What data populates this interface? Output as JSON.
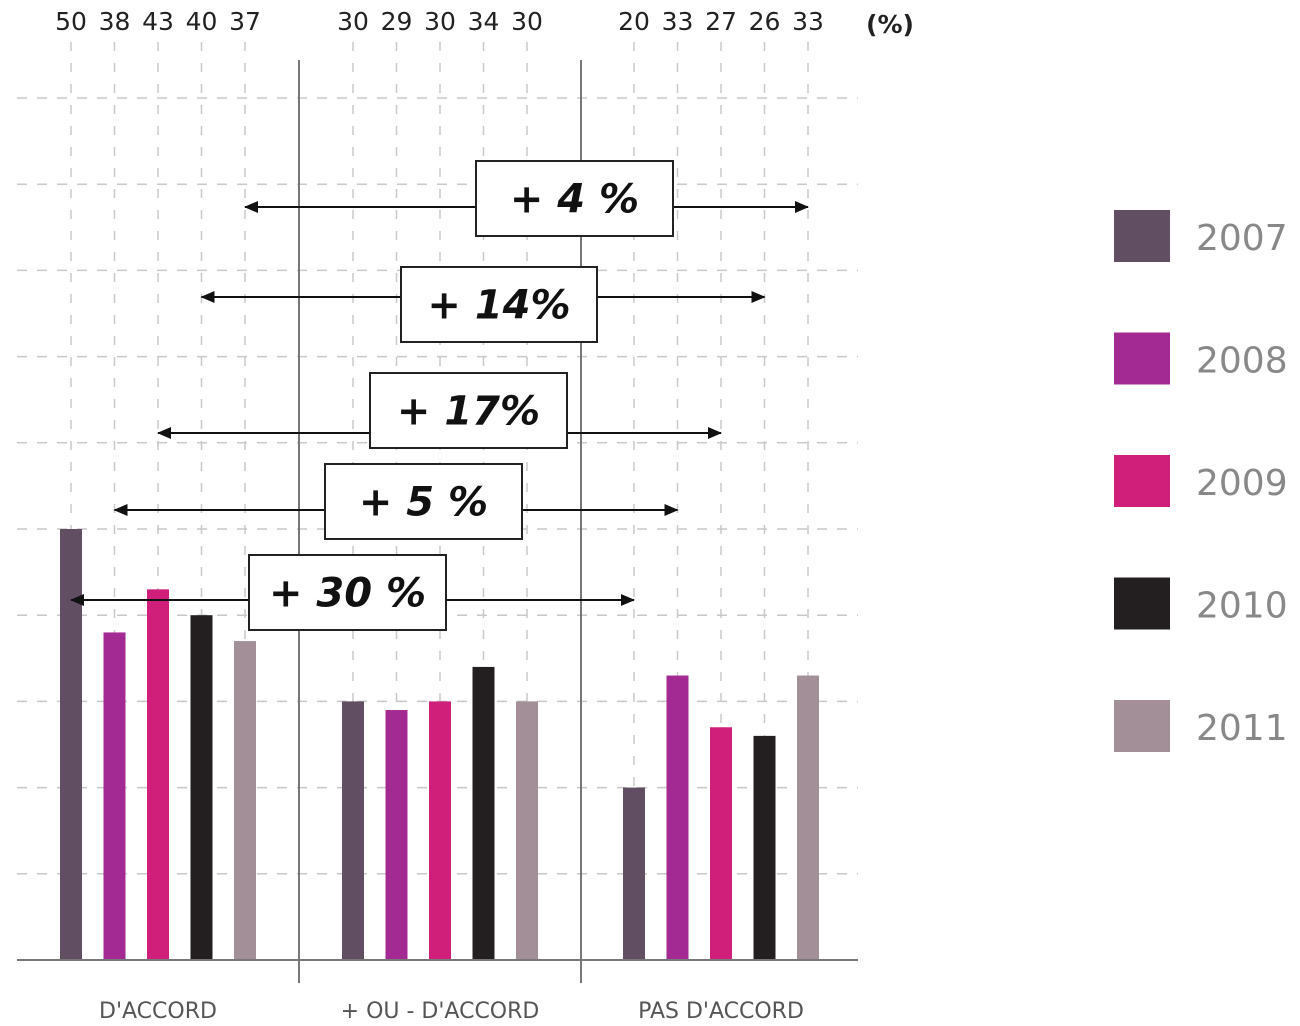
{
  "chart_data": {
    "type": "bar",
    "unit_label": "(%)",
    "categories": [
      "D'ACCORD",
      "+ OU - D'ACCORD",
      "PAS D'ACCORD"
    ],
    "series": [
      {
        "name": "2007",
        "color": "#614e63",
        "values": [
          50,
          30,
          20
        ]
      },
      {
        "name": "2008",
        "color": "#a42a93",
        "values": [
          38,
          29,
          33
        ]
      },
      {
        "name": "2009",
        "color": "#cf1f7b",
        "values": [
          43,
          30,
          27
        ]
      },
      {
        "name": "2010",
        "color": "#231f20",
        "values": [
          40,
          34,
          26
        ]
      },
      {
        "name": "2011",
        "color": "#a38f98",
        "values": [
          37,
          30,
          33
        ]
      }
    ],
    "ylim": [
      0,
      100
    ],
    "grid": true,
    "legend": "right",
    "annotations": [
      {
        "text": "+ 4 %",
        "series": "2011"
      },
      {
        "text": "+ 14%",
        "series": "2010"
      },
      {
        "text": "+ 17%",
        "series": "2009"
      },
      {
        "text": "+ 5 %",
        "series": "2008"
      },
      {
        "text": "+ 30 %",
        "series": "2007"
      }
    ]
  }
}
